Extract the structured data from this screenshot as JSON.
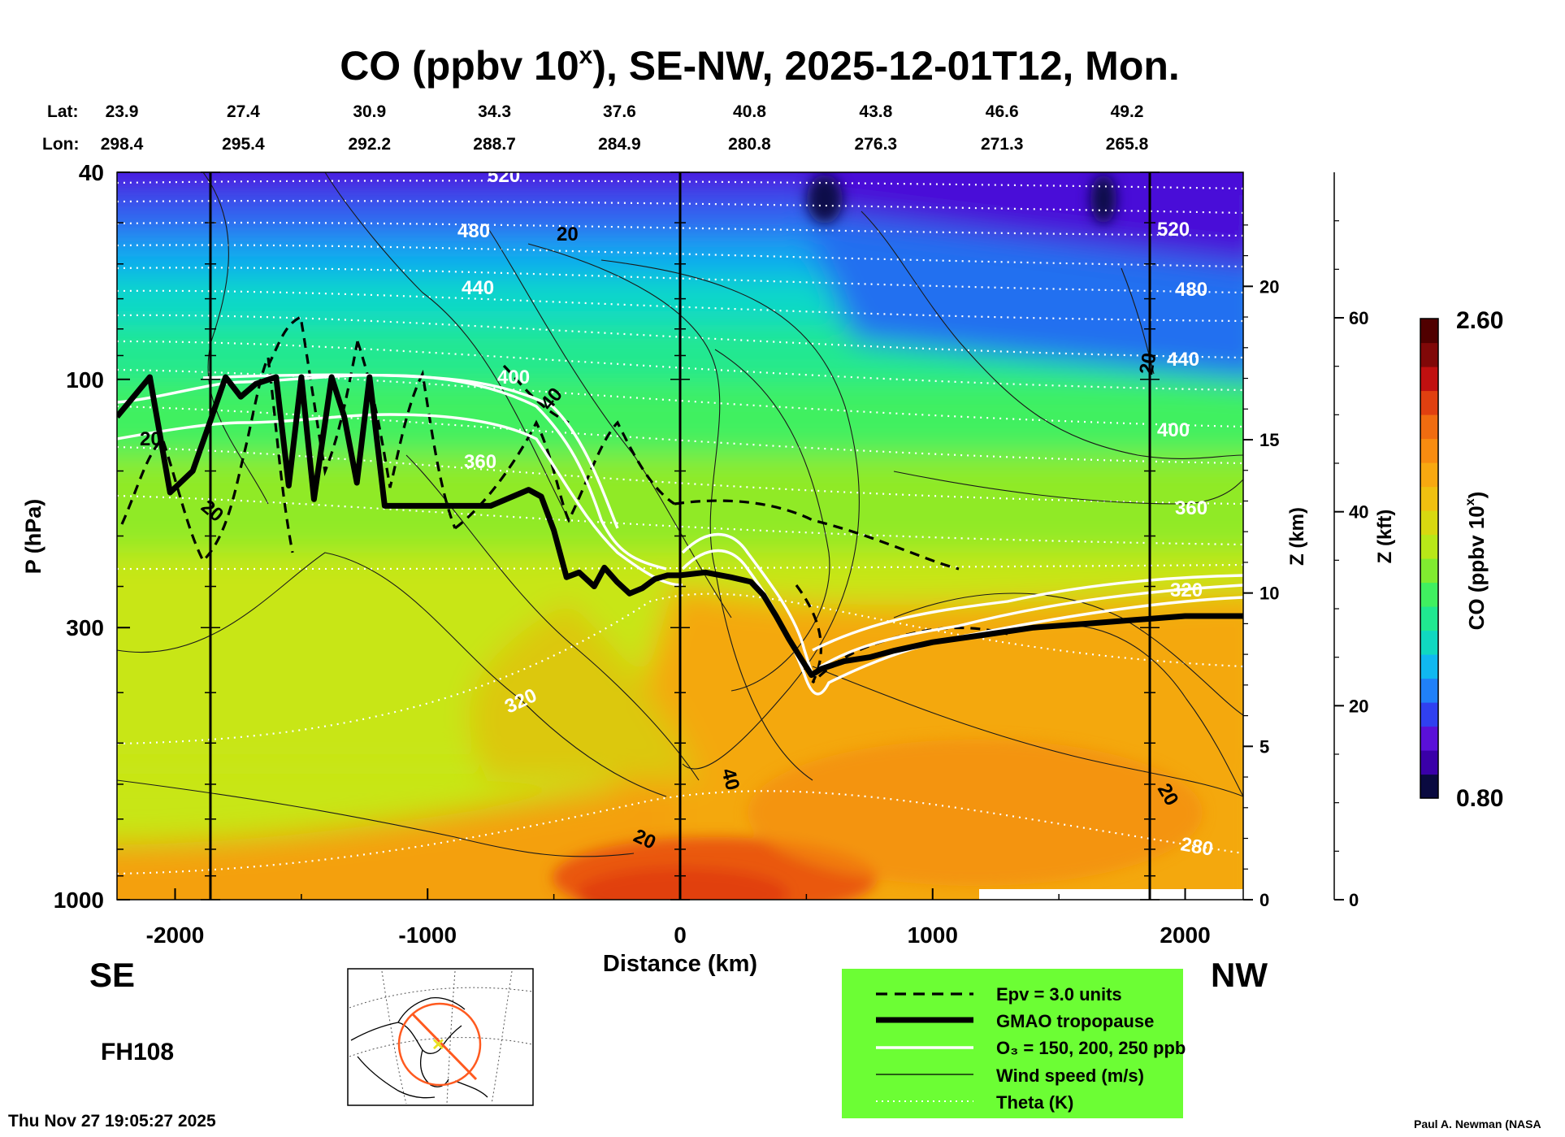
{
  "chart_data": {
    "type": "heatmap",
    "title": "CO (ppbv 10",
    "title_superscript": "x",
    "title_suffix": "), SE-NW, 2025-12-01T12, Mon.",
    "xlabel": "Distance (km)",
    "ylabel": "P (hPa)",
    "zlabel_km": "Z (km)",
    "zlabel_kft": "Z (kft)",
    "xlim": [
      -2230,
      2230
    ],
    "ylim": [
      1000,
      40
    ],
    "yscale": "log",
    "x_ticks": [
      -2000,
      -1000,
      0,
      1000,
      2000
    ],
    "x_tick_labels": [
      "-2000",
      "-1000",
      "0",
      "1000",
      "2000"
    ],
    "y_ticks": [
      40,
      100,
      300,
      1000
    ],
    "y_tick_labels": [
      "40",
      "100",
      "300",
      "1000"
    ],
    "z_km_ticks": [
      0,
      5,
      10,
      15,
      20
    ],
    "z_km_labels": [
      "0",
      "5",
      "10",
      "15",
      "20"
    ],
    "z_kft_ticks": [
      0,
      20,
      40,
      60
    ],
    "z_kft_labels": [
      "0",
      "20",
      "40",
      "60"
    ],
    "z_kft_max": 75,
    "lat_label": "Lat:",
    "lon_label": "Lon:",
    "lat_values": [
      "23.9",
      "27.4",
      "30.9",
      "34.3",
      "37.6",
      "40.8",
      "43.8",
      "46.6",
      "49.2"
    ],
    "lon_values": [
      "298.4",
      "295.4",
      "292.2",
      "288.7",
      "284.9",
      "280.8",
      "276.3",
      "271.3",
      "265.8"
    ],
    "section_positions_km": [
      -2230,
      -1730,
      -1230,
      -735,
      -240,
      275,
      775,
      1275,
      1770
    ],
    "vertical_markers_km": [
      -1860,
      0,
      1860
    ],
    "direction_left": "SE",
    "direction_right": "NW",
    "forecast_hour": "FH108",
    "run_timestamp": "Thu Nov 27 19:05:27 2025",
    "credit": "Paul A. Newman (NASA",
    "colorbar": {
      "label": "CO (ppbv 10",
      "label_superscript": "x",
      "label_suffix": ")",
      "min_label": "0.80",
      "max_label": "2.60",
      "min": 0.8,
      "max": 2.6,
      "colors": [
        "#0a0a40",
        "#3a00a8",
        "#5a10d8",
        "#3040f0",
        "#2080f8",
        "#10b8f0",
        "#10d8c0",
        "#20e890",
        "#40f060",
        "#80ec30",
        "#b8e818",
        "#d8d810",
        "#f0c010",
        "#f8a810",
        "#f88c10",
        "#f06c10",
        "#e04010",
        "#c01010",
        "#800808",
        "#500000"
      ]
    },
    "theta_contour_labels_K": [
      "520",
      "480",
      "440",
      "400",
      "360",
      "320",
      "280"
    ],
    "wind_contour_labels_ms": [
      "20",
      "40"
    ],
    "tropopause_pressure_hPa": {
      "x_km": [
        -2230,
        -2100,
        -2020,
        -1930,
        -1860,
        -1800,
        -1740,
        -1680,
        -1600,
        -1550,
        -1500,
        -1450,
        -1380,
        -1330,
        -1280,
        -1230,
        -1170,
        -1120,
        -1050,
        -980,
        -900,
        -750,
        -600,
        -550,
        -500,
        -450,
        -400,
        -340,
        -300,
        -250,
        -200,
        -150,
        -100,
        -50,
        0,
        100,
        200,
        280,
        330,
        380,
        430,
        480,
        520,
        560,
        650,
        750,
        850,
        1000,
        1200,
        1400,
        1600,
        1800,
        2000,
        2230
      ],
      "p_hPa": [
        118,
        99,
        165,
        150,
        120,
        99,
        108,
        102,
        99,
        160,
        99,
        170,
        99,
        118,
        158,
        99,
        175,
        175,
        175,
        175,
        175,
        175,
        163,
        168,
        195,
        240,
        235,
        250,
        230,
        245,
        258,
        252,
        242,
        238,
        238,
        235,
        240,
        245,
        260,
        285,
        315,
        345,
        370,
        360,
        348,
        342,
        332,
        320,
        310,
        300,
        295,
        290,
        285,
        285
      ]
    },
    "legend": {
      "items": [
        {
          "label": "Epv = 3.0 units",
          "style": "dashed"
        },
        {
          "label": "GMAO tropopause",
          "style": "thick"
        },
        {
          "label": "O₃ = 150, 200, 250 ppb",
          "style": "white"
        },
        {
          "label": "Wind speed (m/s)",
          "style": "thin"
        },
        {
          "label": "Theta (K)",
          "style": "dotted"
        }
      ],
      "background": "#6cfe34"
    },
    "inset_map": {
      "description_icon": "globe-map-icon",
      "track_color": "#ff5a1f",
      "marker_color": "#e8e020"
    }
  }
}
